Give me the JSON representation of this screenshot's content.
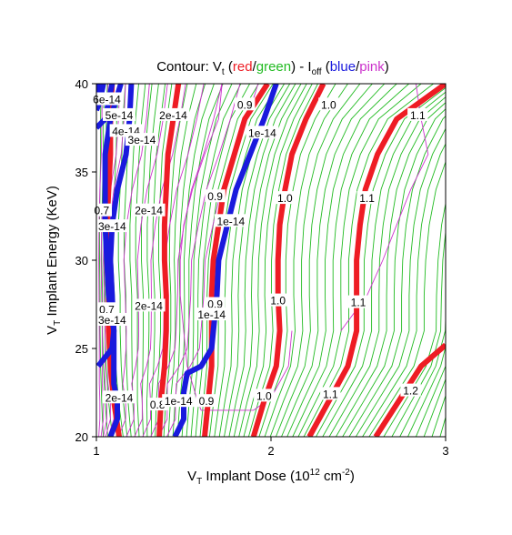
{
  "chart_data": {
    "type": "contour",
    "title": {
      "prefix": "Contour: V",
      "prefix_sub": "t",
      "open": " (",
      "word1": "red",
      "slash1": "/",
      "word2": "green",
      "mid": ") - I",
      "mid_sub": "off",
      "open2": " (",
      "word3": "blue",
      "slash2": "/",
      "word4": "pink",
      "close": ")"
    },
    "xlabel": {
      "pre": "V",
      "sub": "T",
      "text": " Implant Dose (10",
      "sup": "12",
      "unit": " cm",
      "sup2": "-2",
      "end": ")"
    },
    "ylabel": {
      "pre": "V",
      "sub": "T",
      "text": " Implant Energy (KeV)"
    },
    "xlim": [
      1,
      3
    ],
    "ylim": [
      20,
      40
    ],
    "xticks": [
      1,
      2,
      3
    ],
    "yticks": [
      20,
      25,
      30,
      35,
      40
    ],
    "colors": {
      "vt_major": "#ee1c24",
      "vt_minor": "#22bb22",
      "ioff_major": "#1a1add",
      "ioff_minor": "#cc33cc"
    },
    "vt_contours": [
      {
        "level": "0.7",
        "label": "0.7",
        "points": [
          [
            1.13,
            20
          ],
          [
            1.1,
            22
          ],
          [
            1.08,
            24
          ],
          [
            1.07,
            26
          ],
          [
            1.07,
            28
          ],
          [
            1.06,
            30
          ],
          [
            1.06,
            32
          ],
          [
            1.07,
            34
          ],
          [
            1.08,
            36
          ],
          [
            1.08,
            38
          ],
          [
            1.09,
            40
          ]
        ]
      },
      {
        "level": "0.8",
        "label": "0.8",
        "points": [
          [
            1.36,
            20
          ],
          [
            1.37,
            22
          ],
          [
            1.39,
            24
          ],
          [
            1.4,
            26
          ],
          [
            1.4,
            28
          ],
          [
            1.39,
            30
          ],
          [
            1.39,
            32
          ],
          [
            1.4,
            34
          ],
          [
            1.41,
            36
          ],
          [
            1.44,
            38
          ],
          [
            1.47,
            40
          ]
        ]
      },
      {
        "level": "0.9",
        "label": "0.9",
        "points": [
          [
            1.62,
            20
          ],
          [
            1.64,
            22
          ],
          [
            1.66,
            24
          ],
          [
            1.66,
            26
          ],
          [
            1.66,
            28
          ],
          [
            1.67,
            30
          ],
          [
            1.7,
            32
          ],
          [
            1.73,
            34
          ],
          [
            1.79,
            36
          ],
          [
            1.85,
            38
          ],
          [
            1.98,
            40
          ]
        ]
      },
      {
        "level": "1.0",
        "label": "1.0",
        "points": [
          [
            1.9,
            20
          ],
          [
            1.96,
            22
          ],
          [
            2.03,
            24
          ],
          [
            2.05,
            26
          ],
          [
            2.04,
            28
          ],
          [
            2.04,
            30
          ],
          [
            2.05,
            32
          ],
          [
            2.08,
            34
          ],
          [
            2.12,
            36
          ],
          [
            2.2,
            38
          ],
          [
            2.3,
            40
          ]
        ]
      },
      {
        "level": "1.1",
        "label": "1.1",
        "points": [
          [
            2.22,
            20
          ],
          [
            2.33,
            22
          ],
          [
            2.44,
            24
          ],
          [
            2.49,
            26
          ],
          [
            2.49,
            28
          ],
          [
            2.49,
            30
          ],
          [
            2.51,
            32
          ],
          [
            2.54,
            34
          ],
          [
            2.61,
            36
          ],
          [
            2.72,
            38
          ],
          [
            3.0,
            40
          ]
        ]
      },
      {
        "level": "1.2",
        "label": "1.2",
        "points": [
          [
            2.6,
            20
          ],
          [
            2.73,
            22
          ],
          [
            2.86,
            24
          ],
          [
            3.0,
            25.2
          ]
        ]
      }
    ],
    "vt_labels": [
      {
        "text": "0.7",
        "x": 1.03,
        "y": 32.8
      },
      {
        "text": "0.7",
        "x": 1.06,
        "y": 27.2
      },
      {
        "text": "0.8",
        "x": 1.35,
        "y": 21.8
      },
      {
        "text": "0.9",
        "x": 1.85,
        "y": 38.8
      },
      {
        "text": "0.9",
        "x": 1.68,
        "y": 33.6
      },
      {
        "text": "0.9",
        "x": 1.68,
        "y": 27.5
      },
      {
        "text": "0.9",
        "x": 1.63,
        "y": 22.0
      },
      {
        "text": "1.0",
        "x": 2.33,
        "y": 38.8
      },
      {
        "text": "1.0",
        "x": 2.08,
        "y": 33.5
      },
      {
        "text": "1.0",
        "x": 2.04,
        "y": 27.7
      },
      {
        "text": "1.0",
        "x": 1.96,
        "y": 22.3
      },
      {
        "text": "1.1",
        "x": 2.84,
        "y": 38.2
      },
      {
        "text": "1.1",
        "x": 2.55,
        "y": 33.5
      },
      {
        "text": "1.1",
        "x": 2.5,
        "y": 27.6
      },
      {
        "text": "1.1",
        "x": 2.34,
        "y": 22.4
      },
      {
        "text": "1.2",
        "x": 2.8,
        "y": 22.6
      }
    ],
    "ioff_contours": [
      {
        "level": "2e-14",
        "points": [
          [
            1.08,
            20
          ],
          [
            1.12,
            21
          ],
          [
            1.12,
            22
          ],
          [
            1.1,
            23
          ],
          [
            1.1,
            24
          ],
          [
            1.1,
            26
          ],
          [
            1.09,
            28
          ],
          [
            1.08,
            30
          ],
          [
            1.09,
            32
          ],
          [
            1.12,
            34
          ],
          [
            1.17,
            36
          ],
          [
            1.19,
            38
          ],
          [
            1.2,
            40
          ]
        ]
      },
      {
        "level": "1e-14",
        "points": [
          [
            1.45,
            20
          ],
          [
            1.5,
            21
          ],
          [
            1.5,
            22
          ],
          [
            1.5,
            22.5
          ],
          [
            1.52,
            23.6
          ],
          [
            1.6,
            24
          ],
          [
            1.66,
            25
          ],
          [
            1.67,
            26
          ],
          [
            1.69,
            28
          ],
          [
            1.7,
            30
          ],
          [
            1.75,
            32
          ],
          [
            1.8,
            34
          ],
          [
            1.88,
            36
          ],
          [
            1.96,
            38
          ],
          [
            2.03,
            40
          ]
        ]
      },
      {
        "level": "3e-14",
        "points": [
          [
            1.01,
            24
          ],
          [
            1.09,
            25
          ],
          [
            1.1,
            26
          ],
          [
            1.07,
            28
          ],
          [
            1.06,
            30
          ],
          [
            1.05,
            32
          ],
          [
            1.05,
            34
          ],
          [
            1.05,
            36
          ],
          [
            1.08,
            38
          ],
          [
            1.14,
            40
          ]
        ]
      },
      {
        "level": "4e-14",
        "points": [
          [
            1.0,
            37.5
          ],
          [
            1.05,
            38
          ],
          [
            1.09,
            40
          ]
        ]
      },
      {
        "level": "5e-14",
        "points": [
          [
            1.0,
            38.5
          ],
          [
            1.02,
            39
          ],
          [
            1.04,
            40
          ]
        ]
      },
      {
        "level": "6e-14",
        "points": [
          [
            1.0,
            39.3
          ],
          [
            1.01,
            40
          ]
        ]
      }
    ],
    "ioff_labels": [
      {
        "text": "6e-14",
        "x": 1.06,
        "y": 39.1
      },
      {
        "text": "5e-14",
        "x": 1.13,
        "y": 38.2
      },
      {
        "text": "4e-14",
        "x": 1.17,
        "y": 37.3
      },
      {
        "text": "3e-14",
        "x": 1.26,
        "y": 36.8
      },
      {
        "text": "2e-14",
        "x": 1.44,
        "y": 38.2
      },
      {
        "text": "3e-14",
        "x": 1.09,
        "y": 31.9
      },
      {
        "text": "2e-14",
        "x": 1.3,
        "y": 32.8
      },
      {
        "text": "1e-14",
        "x": 1.95,
        "y": 37.2
      },
      {
        "text": "1e-14",
        "x": 1.77,
        "y": 32.2
      },
      {
        "text": "3e-14",
        "x": 1.09,
        "y": 26.6
      },
      {
        "text": "2e-14",
        "x": 1.3,
        "y": 27.4
      },
      {
        "text": "1e-14",
        "x": 1.66,
        "y": 26.9
      },
      {
        "text": "2e-14",
        "x": 1.13,
        "y": 22.2
      },
      {
        "text": "1e-14",
        "x": 1.47,
        "y": 22.0
      }
    ]
  }
}
